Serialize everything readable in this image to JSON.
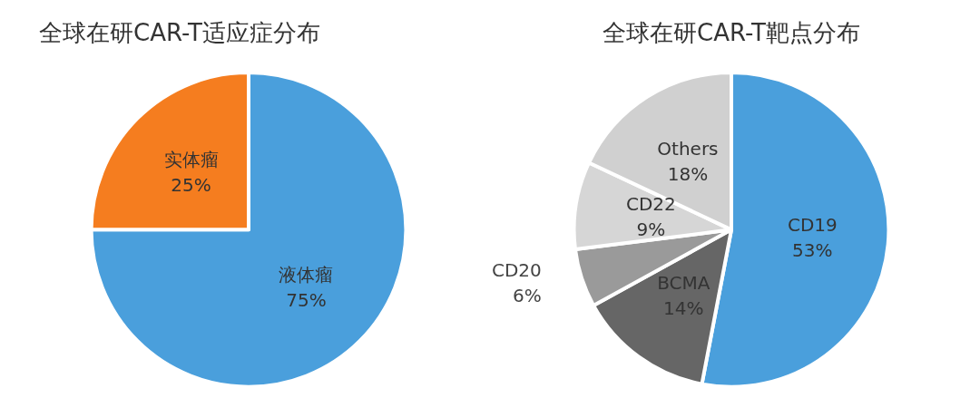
{
  "chart_data": [
    {
      "type": "pie",
      "title": "全球在研CAR-T适应症分布",
      "categories": [
        "液体瘤",
        "实体瘤"
      ],
      "values": [
        75,
        25
      ],
      "value_labels": [
        "75%",
        "25%"
      ],
      "colors": [
        "#4a9fdc",
        "#f57d1f"
      ]
    },
    {
      "type": "pie",
      "title": "全球在研CAR-T靶点分布",
      "categories": [
        "CD19",
        "BCMA",
        "CD20",
        "CD22",
        "Others"
      ],
      "values": [
        53,
        14,
        6,
        9,
        18
      ],
      "value_labels": [
        "53%",
        "14%",
        "6%",
        "9%",
        "18%"
      ],
      "colors": [
        "#4a9fdc",
        "#666666",
        "#9a9a9a",
        "#d6d6d6",
        "#d0d0d0"
      ]
    }
  ]
}
